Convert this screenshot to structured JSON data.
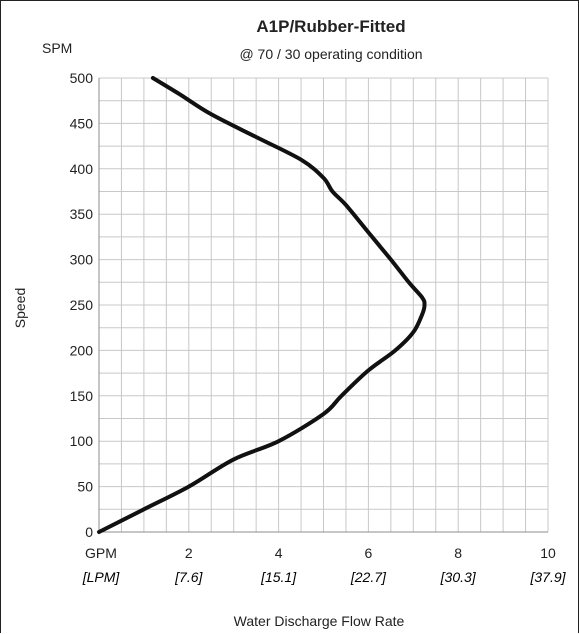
{
  "chart_data": {
    "type": "line",
    "title": "A1P/Rubber-Fitted",
    "subtitle": "@ 70 / 30 operating condition",
    "y_units_label": "SPM",
    "ylabel": "Speed",
    "xlabel": "Water Discharge Flow Rate",
    "x_units_label": "GPM",
    "x_units_label_secondary": "[LPM]",
    "xlim": [
      0,
      10
    ],
    "ylim": [
      0,
      500
    ],
    "x_ticks": [
      {
        "primary": "2",
        "secondary": "[7.6]"
      },
      {
        "primary": "4",
        "secondary": "[15.1]"
      },
      {
        "primary": "6",
        "secondary": "[22.7]"
      },
      {
        "primary": "8",
        "secondary": "[30.3]"
      },
      {
        "primary": "10",
        "secondary": "[37.9]"
      }
    ],
    "y_ticks": [
      "0",
      "50",
      "100",
      "150",
      "200",
      "250",
      "300",
      "350",
      "400",
      "450",
      "500"
    ],
    "grid": true,
    "series": [
      {
        "x": [
          0.0,
          1.0,
          2.0,
          3.0,
          4.0,
          5.0,
          5.4,
          6.0,
          6.6,
          7.0,
          7.2,
          7.25,
          7.2,
          6.9,
          6.5,
          6.0,
          5.5,
          5.2,
          5.0,
          4.5,
          3.5,
          2.5,
          1.8,
          1.2
        ],
        "y": [
          0,
          25,
          50,
          80,
          100,
          130,
          150,
          178,
          200,
          220,
          240,
          250,
          258,
          275,
          300,
          330,
          360,
          375,
          390,
          410,
          435,
          460,
          482,
          500
        ]
      }
    ],
    "colors": {
      "curve": "#111111",
      "grid": "#c8c8c8",
      "text": "#222222"
    }
  }
}
